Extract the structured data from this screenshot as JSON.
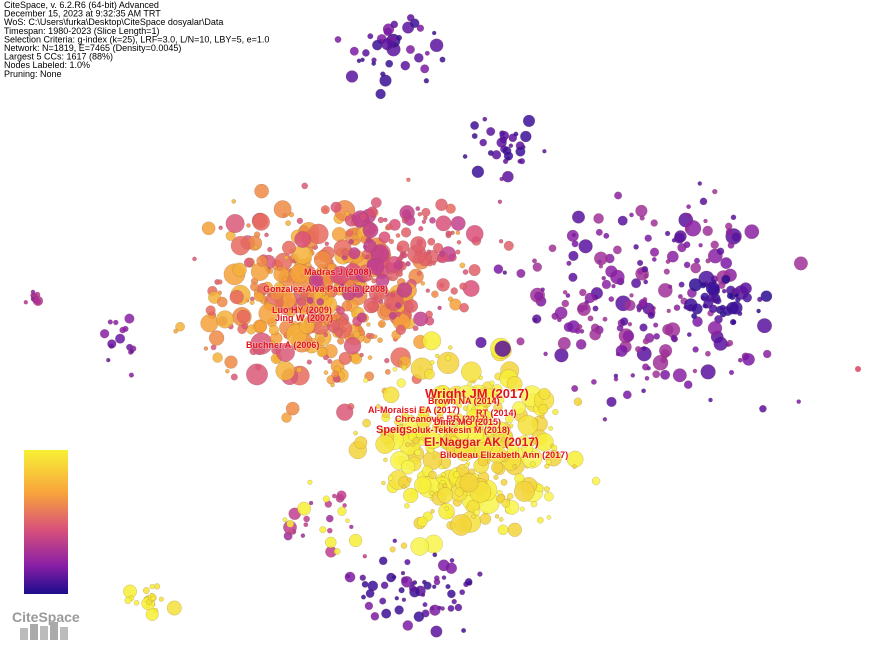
{
  "header": {
    "lines": [
      "CiteSpace, v. 6.2.R6 (64-bit) Advanced",
      "December 15, 2023 at 9:32:35 AM TRT",
      "WoS: C:\\Users\\furka\\Desktop\\CiteSpace dosyalar\\Data",
      "Timespan: 1980-2023 (Slice Length=1)",
      "Selection Criteria: g-index (k=25), LRF=3.0, L/N=10, LBY=5, e=1.0",
      "Network: N=1819, E=7465 (Density=0.0045)",
      "Largest 5 CCs: 1617 (88%)",
      "Nodes Labeled: 1.0%",
      "Pruning: None"
    ]
  },
  "nodes": [
    {
      "label": "Madras J (2008)"
    },
    {
      "label": "Gonzalez-Alva Patricia (2008)"
    },
    {
      "label": "Luo HY (2009)"
    },
    {
      "label": "Jing W (2007)"
    },
    {
      "label": "Buchner A (2006)"
    },
    {
      "label": "Wright JM (2017)"
    },
    {
      "label": "Brown NA (2014)"
    },
    {
      "label": "Al-Moraissi EA (2017)"
    },
    {
      "label": "RT (2014)"
    },
    {
      "label": "Chrcanovic BR (2017)"
    },
    {
      "label": "Diniz MG (2015)"
    },
    {
      "label": "Speig"
    },
    {
      "label": "Soluk-Tekkesin M (2018)"
    },
    {
      "label": "El-Naggar AK (2017)"
    },
    {
      "label": "Bilodeau Elizabeth Ann (2017)"
    }
  ],
  "logo": {
    "text": "CiteSpace"
  }
}
